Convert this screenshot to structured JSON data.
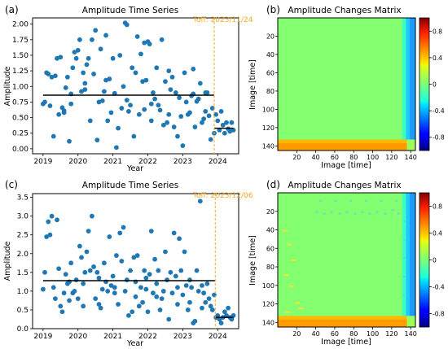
{
  "chart_data": [
    {
      "panel_label": "(a)",
      "type": "scatter",
      "title": "Amplitude Time Series",
      "xlabel": "Year",
      "ylabel": "Amplitude",
      "xlim": [
        2018.7,
        2024.6
      ],
      "ylim": [
        -0.08,
        2.1
      ],
      "x_ticks": [
        2019,
        2020,
        2021,
        2022,
        2023,
        2024
      ],
      "y_ticks": [
        0.0,
        0.25,
        0.5,
        0.75,
        1.0,
        1.25,
        1.5,
        1.75,
        2.0
      ],
      "y_tick_labels": [
        "0.00",
        "0.25",
        "0.50",
        "0.75",
        "1.00",
        "1.25",
        "1.50",
        "1.75",
        "2.00"
      ],
      "annotation": "Toff: 2023/11/24",
      "toff": 2023.9,
      "mean_before": {
        "x": [
          2019.0,
          2023.9
        ],
        "y": 0.86
      },
      "mean_after": {
        "x": [
          2023.9,
          2024.45
        ],
        "y": 0.33
      },
      "marker_color": "#1f77b4",
      "toff_color": "#f5a623",
      "points": [
        [
          2019.0,
          0.72
        ],
        [
          2019.05,
          0.75
        ],
        [
          2019.1,
          1.22
        ],
        [
          2019.15,
          1.2
        ],
        [
          2019.2,
          0.69
        ],
        [
          2019.25,
          1.15
        ],
        [
          2019.3,
          0.2
        ],
        [
          2019.35,
          1.17
        ],
        [
          2019.4,
          1.45
        ],
        [
          2019.45,
          0.55
        ],
        [
          2019.5,
          1.47
        ],
        [
          2019.55,
          0.66
        ],
        [
          2019.6,
          0.61
        ],
        [
          2019.65,
          0.98
        ],
        [
          2019.7,
          1.15
        ],
        [
          2019.75,
          0.12
        ],
        [
          2019.8,
          0.88
        ],
        [
          2019.85,
          1.3
        ],
        [
          2019.9,
          1.55
        ],
        [
          2019.95,
          1.45
        ],
        [
          2020.0,
          1.58
        ],
        [
          2020.05,
          1.75
        ],
        [
          2020.1,
          0.92
        ],
        [
          2020.15,
          1.22
        ],
        [
          2020.2,
          1.05
        ],
        [
          2020.25,
          1.35
        ],
        [
          2020.3,
          1.45
        ],
        [
          2020.35,
          0.45
        ],
        [
          2020.4,
          1.75
        ],
        [
          2020.45,
          1.2
        ],
        [
          2020.5,
          1.9
        ],
        [
          2020.55,
          0.14
        ],
        [
          2020.6,
          0.75
        ],
        [
          2020.65,
          1.6
        ],
        [
          2020.7,
          0.77
        ],
        [
          2020.75,
          0.92
        ],
        [
          2020.8,
          1.82
        ],
        [
          2020.85,
          0.45
        ],
        [
          2020.9,
          1.12
        ],
        [
          2020.95,
          0.58
        ],
        [
          2021.0,
          1.45
        ],
        [
          2021.05,
          0.89
        ],
        [
          2021.1,
          0.02
        ],
        [
          2021.15,
          0.33
        ],
        [
          2021.2,
          1.5
        ],
        [
          2021.25,
          0.65
        ],
        [
          2021.3,
          1.0
        ],
        [
          2021.35,
          2.02
        ],
        [
          2021.4,
          1.99
        ],
        [
          2021.45,
          0.6
        ],
        [
          2021.5,
          0.7
        ],
        [
          2021.55,
          1.3
        ],
        [
          2021.6,
          0.2
        ],
        [
          2021.65,
          1.22
        ],
        [
          2021.7,
          1.8
        ],
        [
          2021.75,
          0.55
        ],
        [
          2021.8,
          1.52
        ],
        [
          2021.85,
          1.08
        ],
        [
          2021.9,
          1.7
        ],
        [
          2021.95,
          1.1
        ],
        [
          2022.0,
          1.72
        ],
        [
          2022.05,
          1.68
        ],
        [
          2022.1,
          0.45
        ],
        [
          2022.15,
          0.9
        ],
        [
          2022.2,
          0.8
        ],
        [
          2022.25,
          1.3
        ],
        [
          2022.3,
          0.7
        ],
        [
          2022.35,
          0.62
        ],
        [
          2022.4,
          1.75
        ],
        [
          2022.45,
          0.38
        ],
        [
          2022.5,
          1.08
        ],
        [
          2022.55,
          0.42
        ],
        [
          2022.6,
          0.55
        ],
        [
          2022.65,
          0.95
        ],
        [
          2022.7,
          1.15
        ],
        [
          2022.75,
          0.35
        ],
        [
          2022.8,
          0.9
        ],
        [
          2022.85,
          0.2
        ],
        [
          2022.9,
          0.82
        ],
        [
          2022.95,
          0.52
        ],
        [
          2023.0,
          0.05
        ],
        [
          2023.05,
          1.22
        ],
        [
          2023.1,
          0.75
        ],
        [
          2023.15,
          0.55
        ],
        [
          2023.2,
          0.58
        ],
        [
          2023.25,
          0.85
        ],
        [
          2023.3,
          1.28
        ],
        [
          2023.35,
          0.35
        ],
        [
          2023.4,
          0.76
        ],
        [
          2023.45,
          0.8
        ],
        [
          2023.5,
          1.05
        ],
        [
          2023.55,
          0.42
        ],
        [
          2023.6,
          0.48
        ],
        [
          2023.65,
          0.6
        ],
        [
          2023.7,
          0.9
        ],
        [
          2023.75,
          0.53
        ],
        [
          2023.8,
          0.15
        ],
        [
          2023.85,
          0.65
        ],
        [
          2023.9,
          0.25
        ],
        [
          2023.95,
          0.55
        ],
        [
          2024.0,
          0.45
        ],
        [
          2024.05,
          0.3
        ],
        [
          2024.1,
          0.6
        ],
        [
          2024.15,
          0.38
        ],
        [
          2024.2,
          0.25
        ],
        [
          2024.25,
          0.42
        ],
        [
          2024.3,
          0.32
        ],
        [
          2024.35,
          0.28
        ],
        [
          2024.4,
          0.42
        ],
        [
          2024.45,
          0.3
        ],
        [
          2021.4,
          0.78
        ],
        [
          2019.6,
          0.58
        ],
        [
          2022.1,
          0.72
        ],
        [
          2020.2,
          0.95
        ],
        [
          2023.3,
          0.88
        ],
        [
          2021.9,
          0.63
        ],
        [
          2020.8,
          1.1
        ],
        [
          2022.6,
          1.25
        ],
        [
          2019.8,
          0.72
        ],
        [
          2023.65,
          0.9
        ]
      ]
    },
    {
      "panel_label": "(b)",
      "type": "heatmap",
      "title": "Amplitude Changes Matrix",
      "xlabel": "Image [time]",
      "ylabel": "Image [time]",
      "size": 145,
      "x_ticks": [
        20,
        40,
        60,
        80,
        100,
        120,
        140
      ],
      "y_ticks": [
        20,
        40,
        60,
        80,
        100,
        120,
        140
      ],
      "colorbar_ticks": [
        0.8,
        0.4,
        0,
        -0.4,
        -0.8
      ],
      "colorbar_tick_labels": [
        "0.8",
        "0.4",
        "0",
        "-0.4",
        "-0.8"
      ],
      "colorbar_range": [
        -1.0,
        1.0
      ]
    },
    {
      "panel_label": "(c)",
      "type": "scatter",
      "title": "Amplitude Time Series",
      "xlabel": "Year",
      "ylabel": "Amplitude",
      "xlim": [
        2018.7,
        2024.6
      ],
      "ylim": [
        0.0,
        3.6
      ],
      "x_ticks": [
        2019,
        2020,
        2021,
        2022,
        2023,
        2024
      ],
      "y_ticks": [
        0.0,
        0.5,
        1.0,
        1.5,
        2.0,
        2.5,
        3.0,
        3.5
      ],
      "y_tick_labels": [
        "0.0",
        "0.5",
        "1.0",
        "1.5",
        "2.0",
        "2.5",
        "3.0",
        "3.5"
      ],
      "annotation": "Toff: 2023/12/06",
      "toff": 2023.93,
      "mean_before": {
        "x": [
          2019.0,
          2023.93
        ],
        "y": 1.28
      },
      "mean_after": {
        "x": [
          2023.93,
          2024.45
        ],
        "y": 0.3
      },
      "marker_color": "#1f77b4",
      "toff_color": "#f5a623",
      "points": [
        [
          2019.0,
          1.05
        ],
        [
          2019.05,
          1.5
        ],
        [
          2019.1,
          2.45
        ],
        [
          2019.15,
          2.85
        ],
        [
          2019.2,
          2.5
        ],
        [
          2019.25,
          3.0
        ],
        [
          2019.3,
          1.1
        ],
        [
          2019.35,
          0.8
        ],
        [
          2019.4,
          2.9
        ],
        [
          2019.45,
          1.6
        ],
        [
          2019.5,
          0.6
        ],
        [
          2019.55,
          0.45
        ],
        [
          2019.6,
          0.95
        ],
        [
          2019.65,
          1.45
        ],
        [
          2019.7,
          1.2
        ],
        [
          2019.75,
          0.75
        ],
        [
          2019.8,
          1.75
        ],
        [
          2019.85,
          0.95
        ],
        [
          2019.9,
          1.0
        ],
        [
          2019.95,
          1.3
        ],
        [
          2020.0,
          0.8
        ],
        [
          2020.05,
          2.2
        ],
        [
          2020.1,
          1.9
        ],
        [
          2020.15,
          0.6
        ],
        [
          2020.2,
          1.5
        ],
        [
          2020.25,
          2.05
        ],
        [
          2020.3,
          2.6
        ],
        [
          2020.35,
          1.55
        ],
        [
          2020.4,
          3.0
        ],
        [
          2020.45,
          1.65
        ],
        [
          2020.5,
          0.8
        ],
        [
          2020.55,
          1.5
        ],
        [
          2020.6,
          1.35
        ],
        [
          2020.65,
          0.55
        ],
        [
          2020.7,
          1.05
        ],
        [
          2020.75,
          1.75
        ],
        [
          2020.8,
          1.25
        ],
        [
          2020.85,
          1.0
        ],
        [
          2020.9,
          2.45
        ],
        [
          2020.95,
          1.15
        ],
        [
          2021.0,
          1.4
        ],
        [
          2021.05,
          1.1
        ],
        [
          2021.1,
          1.95
        ],
        [
          2021.15,
          0.65
        ],
        [
          2021.2,
          2.55
        ],
        [
          2021.25,
          1.8
        ],
        [
          2021.3,
          2.7
        ],
        [
          2021.35,
          1.0
        ],
        [
          2021.4,
          1.3
        ],
        [
          2021.45,
          0.35
        ],
        [
          2021.5,
          1.55
        ],
        [
          2021.55,
          0.45
        ],
        [
          2021.6,
          1.9
        ],
        [
          2021.65,
          1.25
        ],
        [
          2021.7,
          1.95
        ],
        [
          2021.75,
          0.6
        ],
        [
          2021.8,
          1.1
        ],
        [
          2021.85,
          0.7
        ],
        [
          2021.9,
          1.55
        ],
        [
          2021.95,
          1.05
        ],
        [
          2022.0,
          0.45
        ],
        [
          2022.05,
          1.45
        ],
        [
          2022.1,
          2.6
        ],
        [
          2022.15,
          0.95
        ],
        [
          2022.2,
          1.85
        ],
        [
          2022.25,
          1.2
        ],
        [
          2022.3,
          1.55
        ],
        [
          2022.35,
          0.5
        ],
        [
          2022.4,
          0.8
        ],
        [
          2022.45,
          1.0
        ],
        [
          2022.5,
          2.05
        ],
        [
          2022.55,
          1.3
        ],
        [
          2022.6,
          0.25
        ],
        [
          2022.65,
          1.5
        ],
        [
          2022.7,
          0.95
        ],
        [
          2022.75,
          2.55
        ],
        [
          2022.8,
          1.4
        ],
        [
          2022.85,
          0.65
        ],
        [
          2022.9,
          2.4
        ],
        [
          2022.95,
          1.55
        ],
        [
          2023.0,
          0.9
        ],
        [
          2023.05,
          2.05
        ],
        [
          2023.1,
          1.15
        ],
        [
          2023.15,
          0.5
        ],
        [
          2023.2,
          1.3
        ],
        [
          2023.25,
          1.1
        ],
        [
          2023.3,
          0.15
        ],
        [
          2023.35,
          0.2
        ],
        [
          2023.4,
          1.55
        ],
        [
          2023.45,
          1.0
        ],
        [
          2023.5,
          3.4
        ],
        [
          2023.55,
          1.15
        ],
        [
          2023.6,
          0.95
        ],
        [
          2023.65,
          0.7
        ],
        [
          2023.7,
          1.2
        ],
        [
          2023.75,
          0.8
        ],
        [
          2023.8,
          0.6
        ],
        [
          2023.85,
          0.5
        ],
        [
          2023.9,
          0.9
        ],
        [
          2023.95,
          0.3
        ],
        [
          2024.0,
          0.35
        ],
        [
          2024.05,
          0.25
        ],
        [
          2024.1,
          0.15
        ],
        [
          2024.15,
          0.3
        ],
        [
          2024.2,
          0.45
        ],
        [
          2024.25,
          0.35
        ],
        [
          2024.3,
          0.55
        ],
        [
          2024.35,
          0.3
        ],
        [
          2024.4,
          0.25
        ],
        [
          2024.45,
          0.35
        ],
        [
          2021.05,
          0.95
        ],
        [
          2022.25,
          0.85
        ],
        [
          2019.75,
          1.25
        ],
        [
          2020.6,
          0.65
        ],
        [
          2023.2,
          0.7
        ],
        [
          2021.65,
          0.85
        ],
        [
          2022.85,
          1.1
        ],
        [
          2020.15,
          1.2
        ],
        [
          2023.55,
          0.55
        ],
        [
          2021.95,
          1.35
        ]
      ]
    },
    {
      "panel_label": "(d)",
      "type": "heatmap",
      "title": "Amplitude Changes Matrix",
      "xlabel": "Image [time]",
      "ylabel": "Image [time]",
      "size": 145,
      "x_ticks": [
        20,
        40,
        60,
        80,
        100,
        120,
        140
      ],
      "y_ticks": [
        20,
        40,
        60,
        80,
        100,
        120,
        140
      ],
      "colorbar_ticks": [
        0.8,
        0.4,
        0,
        -0.4,
        -0.8
      ],
      "colorbar_tick_labels": [
        "0.8",
        "0.4",
        "0",
        "-0.4",
        "-0.8"
      ],
      "colorbar_range": [
        -1.0,
        1.0
      ]
    }
  ]
}
